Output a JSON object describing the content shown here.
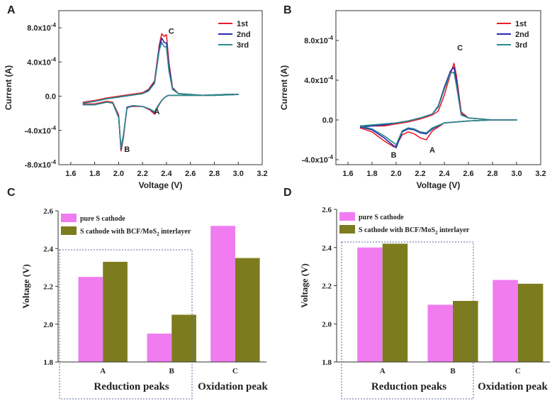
{
  "chart_data": [
    {
      "panel": "A",
      "type": "line",
      "xlabel": "Voltage (V)",
      "ylabel": "Current (A)",
      "xlim": [
        1.5,
        3.2
      ],
      "ylim": [
        -0.0008,
        0.001
      ],
      "xticks": [
        "1.6",
        "1.8",
        "2.0",
        "2.2",
        "2.4",
        "2.6",
        "2.8",
        "3.0",
        "3.2"
      ],
      "yticks": [
        {
          "value": -0.0008,
          "label": "-8.0x10",
          "exp": "-4"
        },
        {
          "value": -0.0004,
          "label": "-4.0x10",
          "exp": "-4"
        },
        {
          "value": 0.0,
          "label": "0.0",
          "exp": ""
        },
        {
          "value": 0.0004,
          "label": "4.0x10",
          "exp": "-4"
        },
        {
          "value": 0.0008,
          "label": "8.0x10",
          "exp": "-4"
        }
      ],
      "peak_labels": [
        {
          "text": "C",
          "x": 2.44,
          "y": 0.00073
        },
        {
          "text": "A",
          "x": 2.32,
          "y": -0.00021
        },
        {
          "text": "B",
          "x": 2.07,
          "y": -0.00065
        }
      ],
      "series": [
        {
          "name": "1st",
          "color": "#e8202a",
          "x": [
            1.7,
            1.8,
            1.9,
            1.95,
            2.0,
            2.02,
            2.04,
            2.07,
            2.12,
            2.2,
            2.26,
            2.3,
            2.33,
            2.36,
            2.38,
            2.4,
            2.42,
            2.45,
            2.5,
            2.6,
            2.8,
            3.0,
            2.9,
            2.7,
            2.5,
            2.45,
            2.42,
            2.4,
            2.38,
            2.36,
            2.34,
            2.3,
            2.25,
            2.2,
            2.1,
            2.0,
            1.9,
            1.8,
            1.7
          ],
          "y": [
            -9e-05,
            -9e-05,
            -6e-05,
            -7e-05,
            -0.00022,
            -0.00064,
            -0.00048,
            -0.00013,
            -0.00012,
            -0.00012,
            -0.00016,
            -0.00021,
            -0.00012,
            -5e-05,
            -2e-05,
            0.0,
            1e-05,
            1e-05,
            1e-05,
            1e-05,
            1e-05,
            2e-05,
            2e-05,
            1e-05,
            3e-05,
            0.0001,
            0.0004,
            0.00072,
            0.0007,
            0.00073,
            0.0006,
            0.00018,
            8e-05,
            4e-05,
            2e-05,
            0.0,
            -2e-05,
            -5e-05,
            -7e-05
          ]
        },
        {
          "name": "2nd",
          "color": "#2a2ab0",
          "x": [
            1.7,
            1.8,
            1.9,
            1.95,
            2.0,
            2.02,
            2.04,
            2.07,
            2.12,
            2.2,
            2.26,
            2.3,
            2.33,
            2.36,
            2.38,
            2.4,
            2.42,
            2.45,
            2.5,
            2.6,
            2.8,
            3.0,
            2.9,
            2.7,
            2.5,
            2.45,
            2.42,
            2.4,
            2.38,
            2.36,
            2.34,
            2.3,
            2.25,
            2.2,
            2.1,
            2.0,
            1.9,
            1.8,
            1.7
          ],
          "y": [
            -0.0001,
            -0.0001,
            -7e-05,
            -8e-05,
            -0.00024,
            -0.00062,
            -0.00046,
            -0.00013,
            -0.00011,
            -0.00012,
            -0.00015,
            -0.00019,
            -0.00011,
            -5e-05,
            -2e-05,
            0.0,
            1e-05,
            1e-05,
            1e-05,
            1e-05,
            1e-05,
            2e-05,
            2e-05,
            1e-05,
            3e-05,
            9e-05,
            0.00036,
            0.00062,
            0.00063,
            0.00068,
            0.00057,
            0.00016,
            7e-05,
            3e-05,
            1e-05,
            -1e-05,
            -3e-05,
            -6e-05,
            -8e-05
          ]
        },
        {
          "name": "3rd",
          "color": "#2a8a8a",
          "x": [
            1.7,
            1.8,
            1.9,
            1.95,
            2.0,
            2.02,
            2.04,
            2.07,
            2.12,
            2.2,
            2.26,
            2.3,
            2.33,
            2.36,
            2.38,
            2.4,
            2.42,
            2.45,
            2.5,
            2.6,
            2.8,
            3.0,
            2.9,
            2.7,
            2.5,
            2.45,
            2.42,
            2.4,
            2.38,
            2.36,
            2.34,
            2.3,
            2.25,
            2.2,
            2.1,
            2.0,
            1.9,
            1.8,
            1.7
          ],
          "y": [
            -0.0001,
            -0.0001,
            -7e-05,
            -8e-05,
            -0.00025,
            -0.0006,
            -0.00045,
            -0.00014,
            -0.00011,
            -0.00012,
            -0.00015,
            -0.00018,
            -0.00011,
            -5e-05,
            -2e-05,
            0.0,
            1e-05,
            1e-05,
            1e-05,
            1e-05,
            1e-05,
            2e-05,
            2e-05,
            1e-05,
            3e-05,
            8e-05,
            0.0003,
            0.00057,
            0.00058,
            0.00063,
            0.00054,
            0.00015,
            6e-05,
            3e-05,
            1e-05,
            -1e-05,
            -3e-05,
            -6e-05,
            -8e-05
          ]
        }
      ]
    },
    {
      "panel": "B",
      "type": "line",
      "xlabel": "Voltage (V)",
      "ylabel": "Current (A)",
      "xlim": [
        1.5,
        3.2
      ],
      "ylim": [
        -0.00045,
        0.0011
      ],
      "xticks": [
        "1.6",
        "1.8",
        "2.0",
        "2.2",
        "2.4",
        "2.6",
        "2.8",
        "3.0",
        "3.2"
      ],
      "yticks": [
        {
          "value": -0.0004,
          "label": "-4.0x10",
          "exp": "-4"
        },
        {
          "value": 0.0,
          "label": "0.0",
          "exp": ""
        },
        {
          "value": 0.0004,
          "label": "4.0x10",
          "exp": "-4"
        },
        {
          "value": 0.0008,
          "label": "8.0x10",
          "exp": "-4"
        }
      ],
      "peak_labels": [
        {
          "text": "C",
          "x": 2.53,
          "y": 0.0007
        },
        {
          "text": "A",
          "x": 2.3,
          "y": -0.00033
        },
        {
          "text": "B",
          "x": 1.98,
          "y": -0.00038
        }
      ],
      "series": [
        {
          "name": "1st",
          "color": "#e8202a",
          "x": [
            1.7,
            1.8,
            1.9,
            1.98,
            2.0,
            2.05,
            2.1,
            2.15,
            2.2,
            2.25,
            2.3,
            2.4,
            2.6,
            2.8,
            3.0,
            2.8,
            2.6,
            2.54,
            2.5,
            2.48,
            2.45,
            2.4,
            2.35,
            2.3,
            2.2,
            2.1,
            2.0,
            1.9,
            1.8,
            1.7
          ],
          "y": [
            -8e-05,
            -0.00012,
            -0.00021,
            -0.00027,
            -0.00026,
            -0.00015,
            -0.00012,
            -0.00014,
            -0.00018,
            -0.0002,
            -0.00011,
            -3e-05,
            -1e-05,
            0.0,
            0.0,
            0.0,
            2e-05,
            8e-05,
            0.00045,
            0.00057,
            0.00046,
            0.00025,
            9e-05,
            5e-05,
            1e-05,
            -2e-05,
            -4e-05,
            -6e-05,
            -6e-05,
            -6e-05
          ]
        },
        {
          "name": "2nd",
          "color": "#2a2ab0",
          "x": [
            1.7,
            1.8,
            1.9,
            1.98,
            2.0,
            2.05,
            2.1,
            2.15,
            2.2,
            2.25,
            2.3,
            2.4,
            2.6,
            2.8,
            3.0,
            2.8,
            2.6,
            2.54,
            2.5,
            2.48,
            2.45,
            2.4,
            2.35,
            2.3,
            2.2,
            2.1,
            2.0,
            1.9,
            1.8,
            1.7
          ],
          "y": [
            -7e-05,
            -0.0001,
            -0.00018,
            -0.00026,
            -0.00028,
            -0.00012,
            -9e-05,
            -0.0001,
            -0.00013,
            -0.00014,
            -9e-05,
            -3e-05,
            -1e-05,
            0.0,
            0.0,
            0.0,
            2e-05,
            6e-05,
            0.0004,
            0.00053,
            0.00049,
            0.00033,
            0.00014,
            6e-05,
            2e-05,
            -1e-05,
            -3e-05,
            -5e-05,
            -6e-05,
            -7e-05
          ]
        },
        {
          "name": "3rd",
          "color": "#2a8a8a",
          "x": [
            1.7,
            1.8,
            1.9,
            1.98,
            2.0,
            2.05,
            2.1,
            2.15,
            2.2,
            2.25,
            2.3,
            2.4,
            2.6,
            2.8,
            3.0,
            2.8,
            2.6,
            2.54,
            2.5,
            2.48,
            2.45,
            2.4,
            2.35,
            2.3,
            2.2,
            2.1,
            2.0,
            1.9,
            1.8,
            1.7
          ],
          "y": [
            -6e-05,
            -9e-05,
            -0.00016,
            -0.00023,
            -0.00025,
            -0.00011,
            -8e-05,
            -9e-05,
            -0.00012,
            -0.00013,
            -8e-05,
            -3e-05,
            -1e-05,
            0.0,
            0.0,
            0.0,
            2e-05,
            5e-05,
            0.00035,
            0.00048,
            0.00047,
            0.00031,
            0.00013,
            6e-05,
            2e-05,
            -1e-05,
            -3e-05,
            -4e-05,
            -5e-05,
            -6e-05
          ]
        }
      ]
    },
    {
      "panel": "C",
      "type": "bar",
      "ylabel": "Voltage (V)",
      "ylim": [
        1.8,
        2.6
      ],
      "yticks": [
        "1.8",
        "2.0",
        "2.2",
        "2.4",
        "2.6"
      ],
      "categories": [
        "A",
        "B",
        "C"
      ],
      "group_labels": [
        "Reduction peaks",
        "Oxidation peak"
      ],
      "series": [
        {
          "name": "pure S cathode",
          "color": "#f07cf0",
          "values": [
            2.25,
            1.95,
            2.52
          ]
        },
        {
          "name": "S cathode with BCF/MoS",
          "sub": "2",
          "name_suffix": " interlayer",
          "color": "#7c7c1e",
          "values": [
            2.33,
            2.05,
            2.35
          ]
        }
      ]
    },
    {
      "panel": "D",
      "type": "bar",
      "ylabel": "Voltage (V)",
      "ylim": [
        1.8,
        2.6
      ],
      "yticks": [
        "1.8",
        "2.0",
        "2.2",
        "2.4",
        "2.6"
      ],
      "categories": [
        "A",
        "B",
        "C"
      ],
      "group_labels": [
        "Reduction peaks",
        "Oxidation peak"
      ],
      "series": [
        {
          "name": "pure S cathode",
          "color": "#f07cf0",
          "values": [
            2.4,
            2.1,
            2.23
          ]
        },
        {
          "name": "S cathode with BCF/MoS",
          "sub": "2",
          "name_suffix": " interlayer",
          "color": "#7c7c1e",
          "values": [
            2.42,
            2.12,
            2.21
          ]
        }
      ]
    }
  ]
}
